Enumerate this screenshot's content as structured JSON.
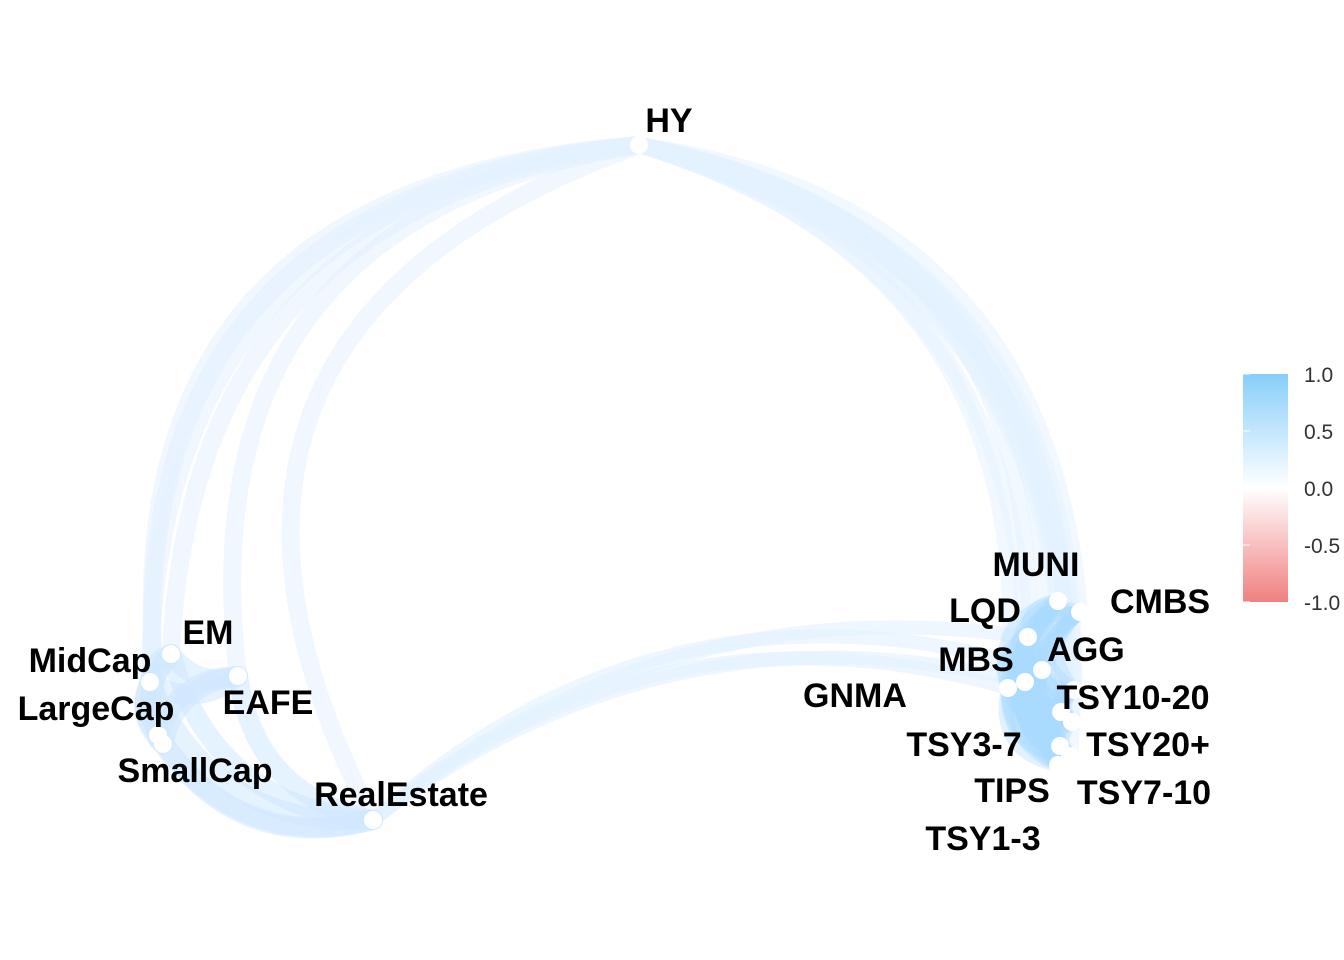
{
  "diagram": {
    "nodes": [
      {
        "id": "HY",
        "label": "HY"
      },
      {
        "id": "MUNI",
        "label": "MUNI"
      },
      {
        "id": "CMBS",
        "label": "CMBS"
      },
      {
        "id": "LQD",
        "label": "LQD"
      },
      {
        "id": "AGG",
        "label": "AGG"
      },
      {
        "id": "MBS",
        "label": "MBS"
      },
      {
        "id": "GNMA",
        "label": "GNMA"
      },
      {
        "id": "TSY10-20",
        "label": "TSY10-20"
      },
      {
        "id": "TSY3-7",
        "label": "TSY3-7"
      },
      {
        "id": "TSY20+",
        "label": "TSY20+"
      },
      {
        "id": "TIPS",
        "label": "TIPS"
      },
      {
        "id": "TSY7-10",
        "label": "TSY7-10"
      },
      {
        "id": "TSY1-3",
        "label": "TSY1-3"
      },
      {
        "id": "EM",
        "label": "EM"
      },
      {
        "id": "MidCap",
        "label": "MidCap"
      },
      {
        "id": "EAFE",
        "label": "EAFE"
      },
      {
        "id": "LargeCap",
        "label": "LargeCap"
      },
      {
        "id": "SmallCap",
        "label": "SmallCap"
      },
      {
        "id": "RealEstate",
        "label": "RealEstate"
      }
    ],
    "colors": {
      "positive": "#87cefa",
      "zero": "#ffffff",
      "negative": "#f08080",
      "node": "#ffffff"
    },
    "legend": {
      "ticks": [
        "1.0",
        "0.5",
        "0.0",
        "-0.5",
        "-1.0"
      ]
    }
  }
}
